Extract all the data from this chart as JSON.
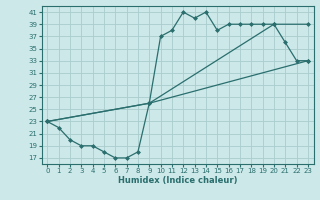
{
  "xlabel": "Humidex (Indice chaleur)",
  "bg_color": "#cce8e8",
  "grid_color": "#aacccc",
  "line_color": "#2a6e6e",
  "xlim": [
    -0.5,
    23.5
  ],
  "ylim": [
    16.0,
    42.0
  ],
  "yticks": [
    17,
    19,
    21,
    23,
    25,
    27,
    29,
    31,
    33,
    35,
    37,
    39,
    41
  ],
  "xticks": [
    0,
    1,
    2,
    3,
    4,
    5,
    6,
    7,
    8,
    9,
    10,
    11,
    12,
    13,
    14,
    15,
    16,
    17,
    18,
    19,
    20,
    21,
    22,
    23
  ],
  "line1_x": [
    0,
    1,
    2,
    3,
    4,
    5,
    6,
    7,
    8,
    9,
    10,
    11,
    12,
    13,
    14,
    15,
    16,
    17,
    18,
    19,
    20,
    21,
    22,
    23
  ],
  "line1_y": [
    23,
    22,
    20,
    19,
    19,
    18,
    17,
    17,
    18,
    26,
    37,
    38,
    41,
    40,
    41,
    38,
    39,
    39,
    39,
    39,
    39,
    36,
    33,
    33
  ],
  "line2_x": [
    0,
    9,
    23
  ],
  "line2_y": [
    23,
    26,
    33
  ],
  "line3_x": [
    0,
    9,
    20,
    23
  ],
  "line3_y": [
    23,
    26,
    39,
    39
  ]
}
